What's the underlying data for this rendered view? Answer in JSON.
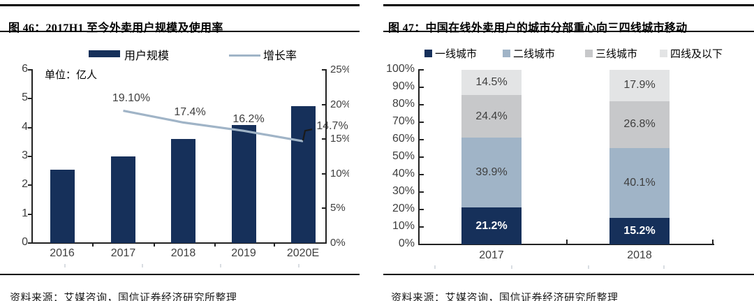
{
  "colors": {
    "navy": "#16305A",
    "steel": "#A0B4C7",
    "gray": "#C7C8CA",
    "light_gray": "#E3E4E5",
    "callout": "#1a1a1a",
    "label_text": "#3f3f3f"
  },
  "figure_left": {
    "title": "图 46：2017H1 至今外卖用户规模及使用率",
    "unit_label": "单位：亿人",
    "legend": {
      "bar_label": "用户规模",
      "line_label": "增长率"
    },
    "source": "资料来源：艾媒咨询，国信证券经济研究所整理"
  },
  "figure_right": {
    "title": "图 47：中国在线外卖用户的城市分部重心向三四线城市移动",
    "source": "资料来源：艾媒咨询，国信证券经济研究所整理"
  },
  "chart_data": [
    {
      "type": "bar",
      "subtype": "bar+line combo",
      "title": "2017H1 至今外卖用户规模及使用率",
      "categories": [
        "2016",
        "2017",
        "2018",
        "2019",
        "2020E"
      ],
      "series": [
        {
          "name": "用户规模",
          "type": "bar",
          "axis": "left",
          "unit": "亿人",
          "values": [
            2.55,
            3.0,
            3.6,
            4.1,
            4.75
          ]
        },
        {
          "name": "增长率",
          "type": "line",
          "axis": "right",
          "values": [
            null,
            19.1,
            17.4,
            16.2,
            14.7
          ],
          "point_labels": [
            "",
            "19.10%",
            "17.4%",
            "16.2%",
            "14.7%"
          ]
        }
      ],
      "left_axis": {
        "tick_labels": [
          "6",
          "5",
          "4",
          "3",
          "2",
          "1",
          "0"
        ],
        "range": [
          0,
          6
        ]
      },
      "right_axis": {
        "tick_labels": [
          "25%",
          "20%",
          "15%",
          "10%",
          "5%",
          "0%"
        ],
        "range": [
          0,
          25
        ]
      },
      "legend_position": "top",
      "grid": false
    },
    {
      "type": "bar",
      "subtype": "stacked-100%",
      "title": "中国在线外卖用户的城市分部重心向三四线城市移动",
      "categories": [
        "2017",
        "2018"
      ],
      "series": [
        {
          "name": "一线城市",
          "color_key": "navy",
          "values": [
            21.2,
            15.2
          ]
        },
        {
          "name": "二线城市",
          "color_key": "steel",
          "values": [
            39.9,
            40.1
          ]
        },
        {
          "name": "三线城市",
          "color_key": "gray",
          "values": [
            24.4,
            26.8
          ]
        },
        {
          "name": "四线及以下",
          "color_key": "light_gray",
          "values": [
            14.5,
            17.9
          ]
        }
      ],
      "y_axis": {
        "tick_labels": [
          "100%",
          "90%",
          "80%",
          "70%",
          "60%",
          "50%",
          "40%",
          "30%",
          "20%",
          "10%",
          "0%"
        ],
        "range": [
          0,
          100
        ]
      },
      "value_suffix": "%",
      "legend_position": "top",
      "grid": false
    }
  ]
}
